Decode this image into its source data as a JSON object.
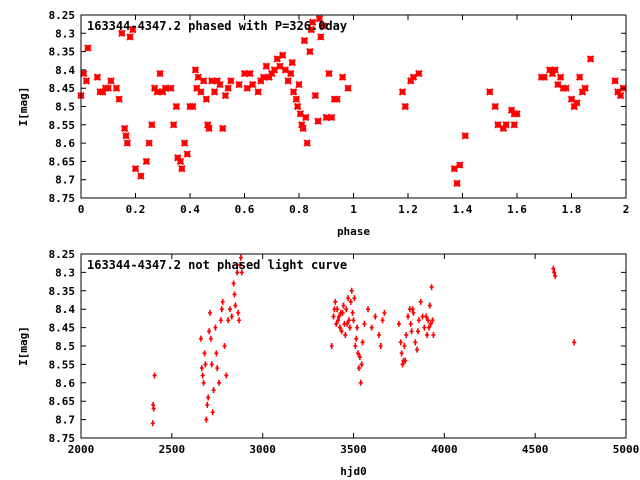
{
  "chart_data": [
    {
      "type": "scatter",
      "title": "163344-4347.2 phased with P=326.0day",
      "xlabel": "phase",
      "ylabel": "I[mag]",
      "xlim": [
        0,
        2
      ],
      "ylim": [
        8.25,
        8.75
      ],
      "y_inverted": true,
      "grid": false,
      "xticks": [
        "0",
        "0.2",
        "0.4",
        "0.6",
        "0.8",
        "1",
        "1.2",
        "1.4",
        "1.6",
        "1.8",
        "2"
      ],
      "yticks": [
        "8.25",
        "8.3",
        "8.35",
        "8.4",
        "8.45",
        "8.5",
        "8.55",
        "8.6",
        "8.65",
        "8.7",
        "8.75"
      ],
      "color": "#ff0000",
      "marker": "cross",
      "points": [
        [
          0.0,
          8.47
        ],
        [
          0.01,
          8.41
        ],
        [
          0.02,
          8.43
        ],
        [
          0.025,
          8.34
        ],
        [
          0.06,
          8.42
        ],
        [
          0.07,
          8.46
        ],
        [
          0.08,
          8.46
        ],
        [
          0.09,
          8.45
        ],
        [
          0.1,
          8.45
        ],
        [
          0.11,
          8.43
        ],
        [
          0.13,
          8.45
        ],
        [
          0.14,
          8.48
        ],
        [
          0.15,
          8.3
        ],
        [
          0.16,
          8.56
        ],
        [
          0.165,
          8.58
        ],
        [
          0.17,
          8.6
        ],
        [
          0.18,
          8.31
        ],
        [
          0.19,
          8.29
        ],
        [
          0.2,
          8.67
        ],
        [
          0.22,
          8.69
        ],
        [
          0.24,
          8.65
        ],
        [
          0.25,
          8.6
        ],
        [
          0.26,
          8.55
        ],
        [
          0.27,
          8.45
        ],
        [
          0.28,
          8.46
        ],
        [
          0.29,
          8.41
        ],
        [
          0.3,
          8.46
        ],
        [
          0.31,
          8.45
        ],
        [
          0.33,
          8.45
        ],
        [
          0.34,
          8.55
        ],
        [
          0.35,
          8.5
        ],
        [
          0.355,
          8.64
        ],
        [
          0.365,
          8.65
        ],
        [
          0.37,
          8.67
        ],
        [
          0.38,
          8.6
        ],
        [
          0.39,
          8.63
        ],
        [
          0.4,
          8.5
        ],
        [
          0.41,
          8.5
        ],
        [
          0.42,
          8.4
        ],
        [
          0.425,
          8.45
        ],
        [
          0.43,
          8.42
        ],
        [
          0.44,
          8.46
        ],
        [
          0.45,
          8.43
        ],
        [
          0.46,
          8.48
        ],
        [
          0.465,
          8.55
        ],
        [
          0.47,
          8.56
        ],
        [
          0.48,
          8.43
        ],
        [
          0.49,
          8.46
        ],
        [
          0.5,
          8.43
        ],
        [
          0.51,
          8.44
        ],
        [
          0.52,
          8.56
        ],
        [
          0.53,
          8.47
        ],
        [
          0.54,
          8.45
        ],
        [
          0.55,
          8.43
        ],
        [
          0.58,
          8.44
        ],
        [
          0.6,
          8.41
        ],
        [
          0.61,
          8.45
        ],
        [
          0.62,
          8.41
        ],
        [
          0.63,
          8.44
        ],
        [
          0.65,
          8.46
        ],
        [
          0.66,
          8.43
        ],
        [
          0.67,
          8.42
        ],
        [
          0.68,
          8.39
        ],
        [
          0.69,
          8.42
        ],
        [
          0.7,
          8.41
        ],
        [
          0.71,
          8.4
        ],
        [
          0.72,
          8.37
        ],
        [
          0.73,
          8.39
        ],
        [
          0.74,
          8.36
        ],
        [
          0.75,
          8.4
        ],
        [
          0.76,
          8.43
        ],
        [
          0.77,
          8.41
        ],
        [
          0.775,
          8.38
        ],
        [
          0.78,
          8.46
        ],
        [
          0.79,
          8.48
        ],
        [
          0.795,
          8.5
        ],
        [
          0.8,
          8.44
        ],
        [
          0.805,
          8.52
        ],
        [
          0.81,
          8.55
        ],
        [
          0.815,
          8.56
        ],
        [
          0.82,
          8.32
        ],
        [
          0.825,
          8.53
        ],
        [
          0.83,
          8.6
        ],
        [
          0.84,
          8.35
        ],
        [
          0.845,
          8.29
        ],
        [
          0.85,
          8.27
        ],
        [
          0.86,
          8.47
        ],
        [
          0.87,
          8.54
        ],
        [
          0.875,
          8.26
        ],
        [
          0.88,
          8.31
        ],
        [
          0.89,
          8.28
        ],
        [
          0.9,
          8.53
        ],
        [
          0.91,
          8.41
        ],
        [
          0.92,
          8.53
        ],
        [
          0.93,
          8.48
        ],
        [
          0.94,
          8.48
        ],
        [
          0.96,
          8.42
        ],
        [
          0.98,
          8.45
        ],
        [
          1.18,
          8.46
        ],
        [
          1.19,
          8.5
        ],
        [
          1.21,
          8.43
        ],
        [
          1.22,
          8.42
        ],
        [
          1.24,
          8.41
        ],
        [
          1.37,
          8.67
        ],
        [
          1.38,
          8.71
        ],
        [
          1.39,
          8.66
        ],
        [
          1.41,
          8.58
        ],
        [
          1.5,
          8.46
        ],
        [
          1.52,
          8.5
        ],
        [
          1.53,
          8.55
        ],
        [
          1.55,
          8.56
        ],
        [
          1.56,
          8.55
        ],
        [
          1.58,
          8.51
        ],
        [
          1.59,
          8.52
        ],
        [
          1.6,
          8.52
        ],
        [
          1.59,
          8.55
        ],
        [
          1.69,
          8.42
        ],
        [
          1.7,
          8.42
        ],
        [
          1.72,
          8.4
        ],
        [
          1.73,
          8.41
        ],
        [
          1.74,
          8.4
        ],
        [
          1.75,
          8.44
        ],
        [
          1.76,
          8.42
        ],
        [
          1.77,
          8.45
        ],
        [
          1.78,
          8.45
        ],
        [
          1.8,
          8.48
        ],
        [
          1.81,
          8.5
        ],
        [
          1.82,
          8.49
        ],
        [
          1.83,
          8.42
        ],
        [
          1.84,
          8.46
        ],
        [
          1.85,
          8.45
        ],
        [
          1.87,
          8.37
        ],
        [
          1.96,
          8.43
        ],
        [
          1.97,
          8.46
        ],
        [
          1.98,
          8.47
        ],
        [
          1.99,
          8.45
        ]
      ]
    },
    {
      "type": "scatter",
      "title": "163344-4347.2 not phased light curve",
      "xlabel": "hjd0",
      "ylabel": "I[mag]",
      "xlim": [
        2000,
        5000
      ],
      "ylim": [
        8.25,
        8.75
      ],
      "y_inverted": true,
      "grid": false,
      "xticks": [
        "2000",
        "2500",
        "3000",
        "3500",
        "4000",
        "4500",
        "5000"
      ],
      "yticks": [
        "8.25",
        "8.3",
        "8.35",
        "8.4",
        "8.45",
        "8.5",
        "8.55",
        "8.6",
        "8.65",
        "8.7",
        "8.75"
      ],
      "color": "#ff0000",
      "marker": "plus",
      "points": [
        [
          2395,
          8.71
        ],
        [
          2397,
          8.66
        ],
        [
          2400,
          8.67
        ],
        [
          2405,
          8.58
        ],
        [
          2660,
          8.48
        ],
        [
          2665,
          8.56
        ],
        [
          2670,
          8.58
        ],
        [
          2675,
          8.6
        ],
        [
          2680,
          8.52
        ],
        [
          2685,
          8.55
        ],
        [
          2690,
          8.7
        ],
        [
          2695,
          8.66
        ],
        [
          2700,
          8.64
        ],
        [
          2705,
          8.46
        ],
        [
          2710,
          8.41
        ],
        [
          2715,
          8.48
        ],
        [
          2720,
          8.55
        ],
        [
          2725,
          8.68
        ],
        [
          2730,
          8.62
        ],
        [
          2740,
          8.45
        ],
        [
          2745,
          8.52
        ],
        [
          2750,
          8.56
        ],
        [
          2760,
          8.6
        ],
        [
          2770,
          8.43
        ],
        [
          2775,
          8.4
        ],
        [
          2780,
          8.38
        ],
        [
          2790,
          8.5
        ],
        [
          2800,
          8.58
        ],
        [
          2810,
          8.43
        ],
        [
          2820,
          8.4
        ],
        [
          2830,
          8.42
        ],
        [
          2840,
          8.33
        ],
        [
          2845,
          8.36
        ],
        [
          2850,
          8.39
        ],
        [
          2860,
          8.3
        ],
        [
          2865,
          8.41
        ],
        [
          2870,
          8.43
        ],
        [
          2875,
          8.28
        ],
        [
          2880,
          8.26
        ],
        [
          2885,
          8.3
        ],
        [
          3380,
          8.5
        ],
        [
          3390,
          8.42
        ],
        [
          3395,
          8.4
        ],
        [
          3400,
          8.38
        ],
        [
          3405,
          8.44
        ],
        [
          3410,
          8.4
        ],
        [
          3415,
          8.43
        ],
        [
          3420,
          8.42
        ],
        [
          3425,
          8.45
        ],
        [
          3430,
          8.41
        ],
        [
          3435,
          8.46
        ],
        [
          3440,
          8.41
        ],
        [
          3445,
          8.39
        ],
        [
          3450,
          8.44
        ],
        [
          3455,
          8.47
        ],
        [
          3460,
          8.4
        ],
        [
          3465,
          8.44
        ],
        [
          3470,
          8.37
        ],
        [
          3475,
          8.43
        ],
        [
          3480,
          8.45
        ],
        [
          3485,
          8.38
        ],
        [
          3490,
          8.35
        ],
        [
          3495,
          8.41
        ],
        [
          3500,
          8.43
        ],
        [
          3505,
          8.37
        ],
        [
          3510,
          8.5
        ],
        [
          3515,
          8.48
        ],
        [
          3520,
          8.45
        ],
        [
          3525,
          8.52
        ],
        [
          3530,
          8.56
        ],
        [
          3535,
          8.53
        ],
        [
          3540,
          8.6
        ],
        [
          3545,
          8.55
        ],
        [
          3550,
          8.49
        ],
        [
          3560,
          8.44
        ],
        [
          3580,
          8.4
        ],
        [
          3600,
          8.45
        ],
        [
          3620,
          8.42
        ],
        [
          3640,
          8.47
        ],
        [
          3650,
          8.5
        ],
        [
          3660,
          8.43
        ],
        [
          3670,
          8.41
        ],
        [
          3750,
          8.44
        ],
        [
          3760,
          8.49
        ],
        [
          3765,
          8.52
        ],
        [
          3770,
          8.55
        ],
        [
          3775,
          8.54
        ],
        [
          3780,
          8.5
        ],
        [
          3785,
          8.54
        ],
        [
          3790,
          8.47
        ],
        [
          3800,
          8.42
        ],
        [
          3810,
          8.4
        ],
        [
          3815,
          8.44
        ],
        [
          3820,
          8.46
        ],
        [
          3825,
          8.4
        ],
        [
          3830,
          8.41
        ],
        [
          3840,
          8.49
        ],
        [
          3850,
          8.51
        ],
        [
          3855,
          8.46
        ],
        [
          3860,
          8.43
        ],
        [
          3870,
          8.38
        ],
        [
          3880,
          8.42
        ],
        [
          3890,
          8.45
        ],
        [
          3900,
          8.42
        ],
        [
          3905,
          8.47
        ],
        [
          3910,
          8.43
        ],
        [
          3915,
          8.45
        ],
        [
          3920,
          8.39
        ],
        [
          3925,
          8.44
        ],
        [
          3930,
          8.34
        ],
        [
          3935,
          8.43
        ],
        [
          3940,
          8.47
        ],
        [
          4600,
          8.29
        ],
        [
          4605,
          8.3
        ],
        [
          4610,
          8.31
        ],
        [
          4715,
          8.49
        ]
      ]
    }
  ]
}
